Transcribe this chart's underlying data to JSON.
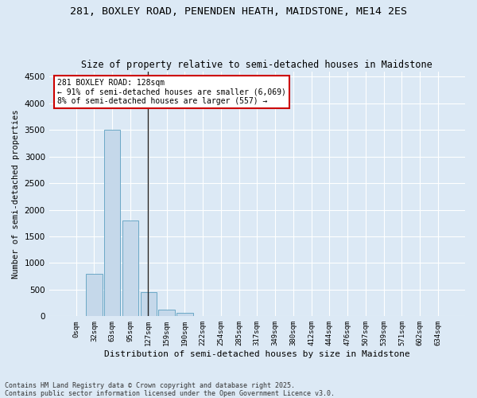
{
  "title_line1": "281, BOXLEY ROAD, PENENDEN HEATH, MAIDSTONE, ME14 2ES",
  "title_line2": "Size of property relative to semi-detached houses in Maidstone",
  "xlabel": "Distribution of semi-detached houses by size in Maidstone",
  "ylabel": "Number of semi-detached properties",
  "footer_line1": "Contains HM Land Registry data © Crown copyright and database right 2025.",
  "footer_line2": "Contains public sector information licensed under the Open Government Licence v3.0.",
  "annotation_line1": "281 BOXLEY ROAD: 128sqm",
  "annotation_line2": "← 91% of semi-detached houses are smaller (6,069)",
  "annotation_line3": "8% of semi-detached houses are larger (557) →",
  "categories": [
    "0sqm",
    "32sqm",
    "63sqm",
    "95sqm",
    "127sqm",
    "159sqm",
    "190sqm",
    "222sqm",
    "254sqm",
    "285sqm",
    "317sqm",
    "349sqm",
    "380sqm",
    "412sqm",
    "444sqm",
    "476sqm",
    "507sqm",
    "539sqm",
    "571sqm",
    "602sqm",
    "634sqm"
  ],
  "values": [
    5,
    800,
    3500,
    1800,
    450,
    120,
    70,
    10,
    2,
    1,
    0,
    0,
    0,
    0,
    0,
    0,
    0,
    0,
    0,
    0,
    0
  ],
  "bar_color": "#c5d8ea",
  "bar_edge_color": "#5b9fc0",
  "vline_color": "#222222",
  "annotation_box_edgecolor": "#cc0000",
  "plot_bg_color": "#dce9f5",
  "fig_bg_color": "#dce9f5",
  "grid_color": "#ffffff",
  "ylim": [
    0,
    4600
  ],
  "yticks": [
    0,
    500,
    1000,
    1500,
    2000,
    2500,
    3000,
    3500,
    4000,
    4500
  ],
  "vline_x_index": 3.97
}
